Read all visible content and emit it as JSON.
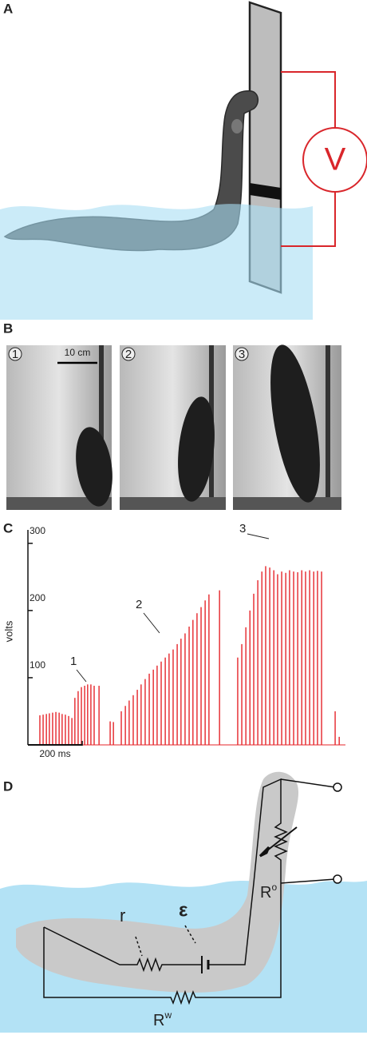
{
  "panel_a": {
    "label": "A",
    "meter": "V"
  },
  "panel_b": {
    "label": "B",
    "frames": [
      "1",
      "2",
      "3"
    ],
    "scale_bar": "10 cm"
  },
  "panel_c": {
    "label": "C"
  },
  "chart_data": {
    "type": "spikes",
    "ylabel": "volts",
    "color": "#e5252a",
    "x": [
      44,
      56,
      68,
      79,
      91,
      103,
      115,
      126,
      138,
      150,
      162,
      173,
      185,
      197,
      209,
      220,
      232,
      244,
      262,
      303,
      315,
      344,
      359,
      373,
      388,
      403,
      417,
      432,
      447,
      462,
      476,
      491,
      506,
      520,
      535,
      550,
      564,
      579,
      594,
      608,
      623,
      638,
      653,
      667,
      706,
      773,
      788,
      803,
      818,
      832,
      847,
      862,
      876,
      891,
      906,
      920,
      935,
      950,
      964,
      979,
      994,
      1009,
      1023,
      1038,
      1053,
      1067,
      1082,
      1132,
      1147
    ],
    "values": [
      44,
      45,
      46,
      47,
      48,
      49,
      48,
      46,
      45,
      43,
      40,
      70,
      80,
      86,
      88,
      90,
      90,
      88,
      88,
      35,
      34,
      50,
      58,
      66,
      74,
      82,
      90,
      98,
      106,
      112,
      118,
      124,
      130,
      136,
      142,
      150,
      158,
      166,
      176,
      186,
      196,
      205,
      215,
      224,
      230,
      130,
      150,
      175,
      200,
      225,
      245,
      258,
      266,
      264,
      260,
      254,
      258,
      256,
      260,
      258,
      257,
      260,
      258,
      260,
      258,
      259,
      258,
      50,
      12
    ],
    "xlim": [
      0,
      1170
    ],
    "ylim": [
      0,
      320
    ],
    "yticks": [
      100,
      200,
      300
    ],
    "scale_bar": {
      "value": 200,
      "label": "200 ms"
    },
    "annotations": [
      "1",
      "2",
      "3"
    ]
  },
  "panel_d": {
    "label": "D",
    "internal_resistance": "r",
    "emf": "ε",
    "organ_resistance": {
      "base": "R",
      "sup": "o"
    },
    "water_resistance": {
      "base": "R",
      "sup": "w"
    }
  }
}
